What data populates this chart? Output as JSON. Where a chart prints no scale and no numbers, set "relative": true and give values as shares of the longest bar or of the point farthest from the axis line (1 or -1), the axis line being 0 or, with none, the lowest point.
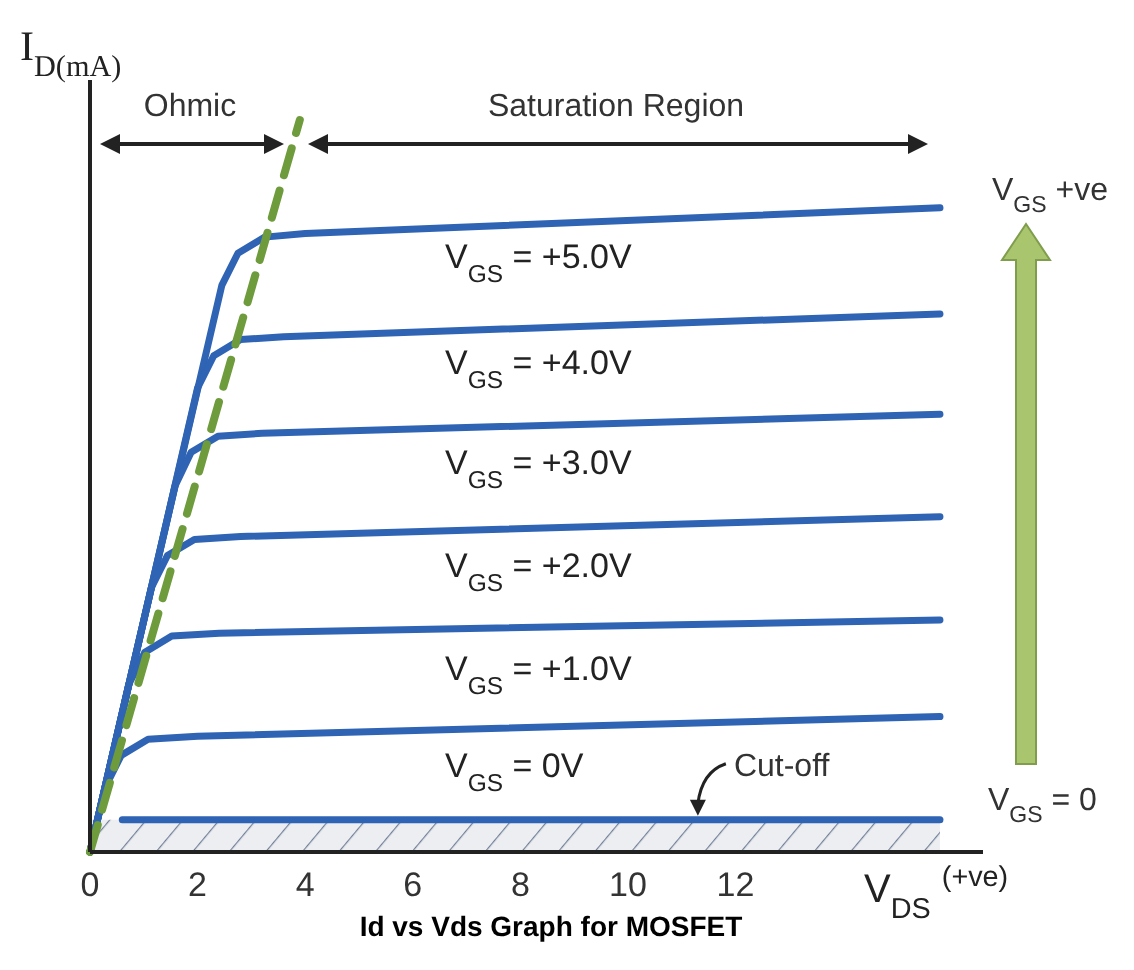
{
  "chart_data": {
    "type": "line",
    "title": "Id vs Vds Graph for MOSFET",
    "xlabel": "V$_{DS}$ $^{(+ve)}$",
    "ylabel": "I$_{D(mA)}$",
    "relative": true,
    "tick_labels": "x",
    "legend": false,
    "xlim": [
      0,
      16.6
    ],
    "xticks": [
      0,
      2,
      4,
      6,
      8,
      10,
      12
    ],
    "series": [
      {
        "name": "V$_{GS}$ = +5.0V",
        "color": "#2f63b3",
        "x": [
          0,
          2.45,
          2.75,
          3.25,
          4,
          15.8
        ],
        "values": [
          0,
          0.774,
          0.818,
          0.84,
          0.845,
          0.88
        ]
      },
      {
        "name": "V$_{GS}$ = +4.0V",
        "color": "#2f63b3",
        "x": [
          0,
          2,
          2.3,
          2.8,
          3.6,
          15.8
        ],
        "values": [
          0,
          0.634,
          0.678,
          0.7,
          0.704,
          0.735
        ]
      },
      {
        "name": "V$_{GS}$ = +3.0V",
        "color": "#2f63b3",
        "x": [
          0,
          1.58,
          1.88,
          2.38,
          3.2,
          15.8
        ],
        "values": [
          0,
          0.5,
          0.546,
          0.568,
          0.572,
          0.598
        ]
      },
      {
        "name": "V$_{GS}$ = +2.0V",
        "color": "#2f63b3",
        "x": [
          0,
          1.14,
          1.44,
          1.94,
          2.8,
          15.8
        ],
        "values": [
          0,
          0.361,
          0.405,
          0.427,
          0.431,
          0.458
        ]
      },
      {
        "name": "V$_{GS}$ = +1.0V",
        "color": "#2f63b3",
        "x": [
          0,
          0.72,
          1.02,
          1.52,
          2.4,
          15.8
        ],
        "values": [
          0,
          0.229,
          0.273,
          0.295,
          0.299,
          0.317
        ]
      },
      {
        "name": "V$_{GS}$ = 0V",
        "color": "#2f63b3",
        "x": [
          0,
          0.28,
          0.58,
          1.08,
          2,
          15.8
        ],
        "values": [
          0,
          0.088,
          0.132,
          0.154,
          0.158,
          0.185
        ]
      },
      {
        "color": "#2f63b3",
        "x": [
          0.6,
          15.8
        ],
        "values": [
          0.044,
          0.044
        ]
      },
      {
        "color": "#6e9b3c",
        "line_style": "dashed",
        "x": [
          0,
          3.9
        ],
        "values": [
          0,
          1
        ]
      }
    ],
    "bands": [
      {
        "axis": "y",
        "from": 0,
        "to": 0.044,
        "color": "#7d8aa3"
      }
    ],
    "annotations": [
      "Ohmic",
      "Saturation Region",
      "V$_{GS}$ +ve",
      "V$_{GS}$ = 0",
      {
        "text": "Cut-off",
        "x": 11.3,
        "y": 0.044
      }
    ]
  }
}
